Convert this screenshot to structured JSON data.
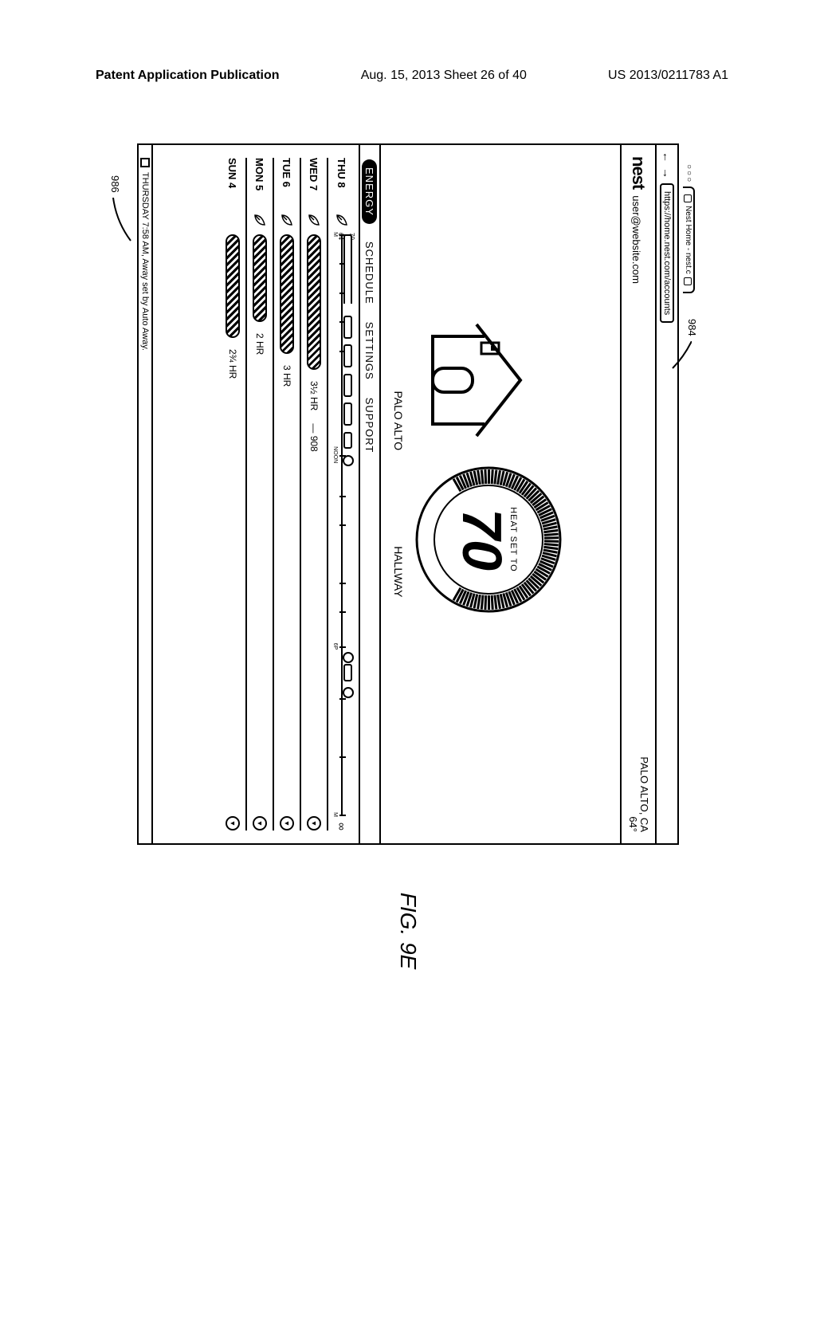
{
  "header": {
    "left": "Patent Application Publication",
    "mid": "Aug. 15, 2013  Sheet 26 of 40",
    "right": "US 2013/0211783 A1"
  },
  "browser": {
    "window_dots": "○○○",
    "tab_title": "Nest Home - nest.c",
    "url": "https://home.nest.com/accounts"
  },
  "userbar": {
    "brand": "nest",
    "email": "user@website.com",
    "location_city": "PALO ALTO, CA",
    "location_temp": "64°"
  },
  "dial": {
    "heat_label": "HEAT SET TO",
    "temp": "70"
  },
  "loc_labels": {
    "left": "PALO ALTO",
    "right": "HALLWAY"
  },
  "tabs": {
    "items": [
      "ENERGY",
      "SCHEDULE",
      "SETTINGS",
      "SUPPORT"
    ],
    "active_index": 0
  },
  "timeline_ticks": {
    "labels": [
      "M",
      "",
      "",
      "",
      "",
      "NOON",
      "",
      "",
      "",
      "",
      "6P",
      "",
      "",
      "M"
    ],
    "pos_pct": [
      0,
      5,
      10,
      15,
      20,
      38,
      45,
      50,
      60,
      65,
      71,
      80,
      90,
      100
    ]
  },
  "detail_row": {
    "y_top": "70",
    "y_bot": "64",
    "segments": [
      {
        "left_pct": 0,
        "width_pct": 12,
        "cls": "left"
      },
      {
        "left_pct": 14,
        "width_pct": 4,
        "cls": ""
      },
      {
        "left_pct": 19,
        "width_pct": 4,
        "cls": ""
      },
      {
        "left_pct": 24,
        "width_pct": 4,
        "cls": ""
      },
      {
        "left_pct": 29,
        "width_pct": 4,
        "cls": ""
      },
      {
        "left_pct": 34,
        "width_pct": 3,
        "cls": ""
      },
      {
        "left_pct": 74,
        "width_pct": 3,
        "cls": ""
      }
    ],
    "icons_pct": [
      38,
      72,
      78
    ],
    "right_label": "∞"
  },
  "rows": [
    {
      "day": "THU",
      "num": "8",
      "leaf": true,
      "detail": true
    },
    {
      "day": "WED",
      "num": "7",
      "leaf": true,
      "bar_width_pct": 34,
      "hr": "3½ HR",
      "info": true,
      "callout": "908"
    },
    {
      "day": "TUE",
      "num": "6",
      "leaf": true,
      "bar_width_pct": 30,
      "hr": "3 HR",
      "info": true
    },
    {
      "day": "MON",
      "num": "5",
      "leaf": true,
      "bar_width_pct": 22,
      "hr": "2 HR",
      "info": true
    },
    {
      "day": "SUN",
      "num": "4",
      "leaf": false,
      "bar_width_pct": 26,
      "hr": "2¾ HR",
      "info": true
    }
  ],
  "footer": {
    "text": "THURSDAY 7:58 AM, Away set by Auto Away."
  },
  "callouts": {
    "a": "984",
    "b": "986"
  },
  "figcaption": "FIG. 9E",
  "colors": {
    "stroke": "#000000",
    "bg": "#ffffff"
  }
}
